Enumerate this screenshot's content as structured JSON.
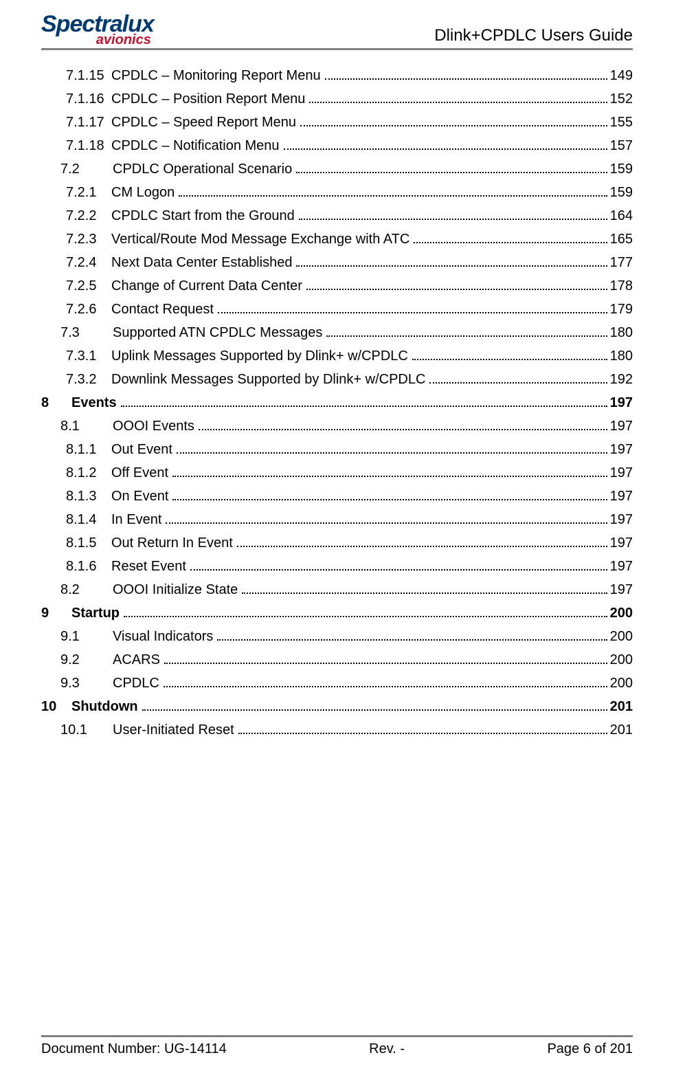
{
  "header": {
    "logo_main": "Spectralux",
    "logo_sub": "avionics",
    "doc_title": "Dlink+CPDLC Users Guide"
  },
  "toc": [
    {
      "indent": 3,
      "num": "7.1.15",
      "title": "CPDLC – Monitoring Report Menu",
      "page": "149",
      "bold": false
    },
    {
      "indent": 3,
      "num": "7.1.16",
      "title": "CPDLC – Position Report Menu",
      "page": "152",
      "bold": false
    },
    {
      "indent": 3,
      "num": "7.1.17",
      "title": "CPDLC – Speed Report Menu",
      "page": "155",
      "bold": false
    },
    {
      "indent": 3,
      "num": "7.1.18",
      "title": "CPDLC – Notification Menu",
      "page": "157",
      "bold": false
    },
    {
      "indent": 1,
      "num": "7.2",
      "title": "CPDLC Operational Scenario",
      "page": "159",
      "bold": false
    },
    {
      "indent": 2,
      "num": "7.2.1",
      "title": "CM Logon",
      "page": "159",
      "bold": false
    },
    {
      "indent": 2,
      "num": "7.2.2",
      "title": "CPDLC Start from the Ground",
      "page": "164",
      "bold": false
    },
    {
      "indent": 2,
      "num": "7.2.3",
      "title": "Vertical/Route Mod Message Exchange with ATC",
      "page": "165",
      "bold": false
    },
    {
      "indent": 2,
      "num": "7.2.4",
      "title": "Next Data Center Established",
      "page": "177",
      "bold": false
    },
    {
      "indent": 2,
      "num": "7.2.5",
      "title": "Change of Current Data Center",
      "page": "178",
      "bold": false
    },
    {
      "indent": 2,
      "num": "7.2.6",
      "title": "Contact Request",
      "page": "179",
      "bold": false
    },
    {
      "indent": 1,
      "num": "7.3",
      "title": "Supported ATN CPDLC Messages",
      "page": "180",
      "bold": false
    },
    {
      "indent": 2,
      "num": "7.3.1",
      "title": "Uplink Messages Supported by Dlink+ w/CPDLC",
      "page": "180",
      "bold": false
    },
    {
      "indent": 2,
      "num": "7.3.2",
      "title": "Downlink Messages Supported by Dlink+ w/CPDLC",
      "page": "192",
      "bold": false
    },
    {
      "indent": 0,
      "num": "8",
      "title": "Events",
      "page": "197",
      "bold": true
    },
    {
      "indent": 1,
      "num": "8.1",
      "title": "OOOI Events",
      "page": "197",
      "bold": false
    },
    {
      "indent": 2,
      "num": "8.1.1",
      "title": "Out Event",
      "page": "197",
      "bold": false
    },
    {
      "indent": 2,
      "num": "8.1.2",
      "title": "Off Event",
      "page": "197",
      "bold": false
    },
    {
      "indent": 2,
      "num": "8.1.3",
      "title": "On Event",
      "page": "197",
      "bold": false
    },
    {
      "indent": 2,
      "num": "8.1.4",
      "title": "In Event",
      "page": "197",
      "bold": false
    },
    {
      "indent": 2,
      "num": "8.1.5",
      "title": "Out Return In Event",
      "page": "197",
      "bold": false
    },
    {
      "indent": 2,
      "num": "8.1.6",
      "title": "Reset Event",
      "page": "197",
      "bold": false
    },
    {
      "indent": 1,
      "num": "8.2",
      "title": "OOOI Initialize State",
      "page": "197",
      "bold": false
    },
    {
      "indent": 0,
      "num": "9",
      "title": "Startup",
      "page": "200",
      "bold": true
    },
    {
      "indent": 1,
      "num": "9.1",
      "title": "Visual Indicators",
      "page": "200",
      "bold": false
    },
    {
      "indent": 1,
      "num": "9.2",
      "title": "ACARS",
      "page": "200",
      "bold": false
    },
    {
      "indent": 1,
      "num": "9.3",
      "title": "CPDLC",
      "page": "200",
      "bold": false
    },
    {
      "indent": 0,
      "num": "10",
      "title": "Shutdown",
      "page": "201",
      "bold": true
    },
    {
      "indent": 1,
      "num": "10.1",
      "title": "User-Initiated Reset",
      "page": "201",
      "bold": false
    }
  ],
  "footer": {
    "doc_number_label": "Document Number:  ",
    "doc_number": "UG-14114",
    "revision": "Rev. -",
    "page_label": "Page 6 of 201"
  }
}
